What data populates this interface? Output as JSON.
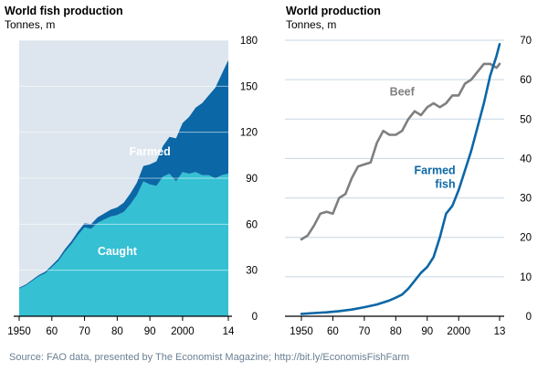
{
  "chart_data": [
    {
      "type": "area",
      "title": "World fish production",
      "subtitle": "Tonnes, m",
      "x_ticks": [
        {
          "x": 1950,
          "label": "1950"
        },
        {
          "x": 1960,
          "label": "60"
        },
        {
          "x": 1970,
          "label": "70"
        },
        {
          "x": 1980,
          "label": "80"
        },
        {
          "x": 1990,
          "label": "90"
        },
        {
          "x": 2000,
          "label": "2000"
        },
        {
          "x": 2014,
          "label": "14"
        }
      ],
      "y_ticks": [
        0,
        30,
        60,
        90,
        120,
        150,
        180
      ],
      "xlim": [
        1950,
        2014
      ],
      "ylim": [
        0,
        180
      ],
      "stacked": true,
      "x": [
        1950,
        1952,
        1954,
        1956,
        1958,
        1960,
        1962,
        1964,
        1966,
        1968,
        1970,
        1972,
        1974,
        1976,
        1978,
        1980,
        1982,
        1984,
        1986,
        1988,
        1990,
        1992,
        1994,
        1996,
        1998,
        2000,
        2002,
        2004,
        2006,
        2008,
        2010,
        2012,
        2014
      ],
      "series": [
        {
          "name": "Caught",
          "color": "#35c0d3",
          "label_x": 1980,
          "label_y": 40,
          "values": [
            18,
            20,
            23,
            26,
            28,
            32,
            36,
            42,
            47,
            53,
            58,
            57,
            61,
            63,
            65,
            66,
            68,
            73,
            79,
            88,
            86,
            85,
            91,
            93,
            88,
            94,
            93,
            94,
            92,
            92,
            90,
            92,
            93
          ]
        },
        {
          "name": "Farmed",
          "color": "#0b67a6",
          "label_x": 1990,
          "label_y": 105,
          "values": [
            0.6,
            0.7,
            0.8,
            0.9,
            1,
            1.2,
            1.5,
            1.8,
            2,
            2.3,
            2.6,
            3,
            3.5,
            4,
            4.5,
            5,
            6,
            7,
            8,
            10,
            13,
            16,
            20,
            24,
            28,
            32,
            37,
            42,
            47,
            52,
            59,
            66,
            74
          ]
        }
      ]
    },
    {
      "type": "line",
      "title": "World production",
      "subtitle": "Tonnes, m",
      "x_ticks": [
        {
          "x": 1950,
          "label": "1950"
        },
        {
          "x": 1960,
          "label": "60"
        },
        {
          "x": 1970,
          "label": "70"
        },
        {
          "x": 1980,
          "label": "80"
        },
        {
          "x": 1990,
          "label": "90"
        },
        {
          "x": 2000,
          "label": "2000"
        },
        {
          "x": 2013,
          "label": "13"
        }
      ],
      "y_ticks": [
        0,
        10,
        20,
        30,
        40,
        50,
        60,
        70
      ],
      "xlim": [
        1950,
        2013
      ],
      "ylim": [
        0,
        70
      ],
      "series": [
        {
          "name": "Beef",
          "color": "#7f7f7f",
          "label_x": 1982,
          "label_y": 56,
          "x": [
            1950,
            1952,
            1954,
            1956,
            1958,
            1960,
            1962,
            1964,
            1966,
            1968,
            1970,
            1972,
            1974,
            1976,
            1978,
            1980,
            1982,
            1984,
            1986,
            1988,
            1990,
            1992,
            1994,
            1996,
            1998,
            2000,
            2002,
            2004,
            2006,
            2008,
            2010,
            2012,
            2013
          ],
          "values": [
            19.5,
            20.5,
            23,
            26,
            26.5,
            26,
            30,
            31,
            35,
            38,
            38.5,
            39,
            44,
            47,
            46,
            46,
            47,
            50,
            52,
            51,
            53,
            54,
            53,
            54,
            56,
            56,
            59,
            60,
            62,
            64,
            64,
            63,
            64
          ]
        },
        {
          "name": "Farmed\nfish",
          "color": "#0b67a6",
          "label_x": 1992,
          "label_y": 36,
          "x": [
            1950,
            1954,
            1958,
            1962,
            1966,
            1970,
            1974,
            1978,
            1980,
            1982,
            1984,
            1986,
            1988,
            1990,
            1992,
            1994,
            1996,
            1998,
            2000,
            2002,
            2004,
            2006,
            2008,
            2010,
            2012,
            2013
          ],
          "values": [
            0.6,
            0.8,
            1,
            1.3,
            1.7,
            2.3,
            3,
            4,
            4.7,
            5.5,
            7,
            9,
            11,
            12.5,
            15,
            20,
            26,
            28,
            32,
            37,
            42,
            48,
            54,
            61,
            66,
            69
          ]
        }
      ]
    }
  ],
  "source": "Source:  FAO data, presented by The Economist Magazine; http://bit.ly/EconomisFishFarm"
}
